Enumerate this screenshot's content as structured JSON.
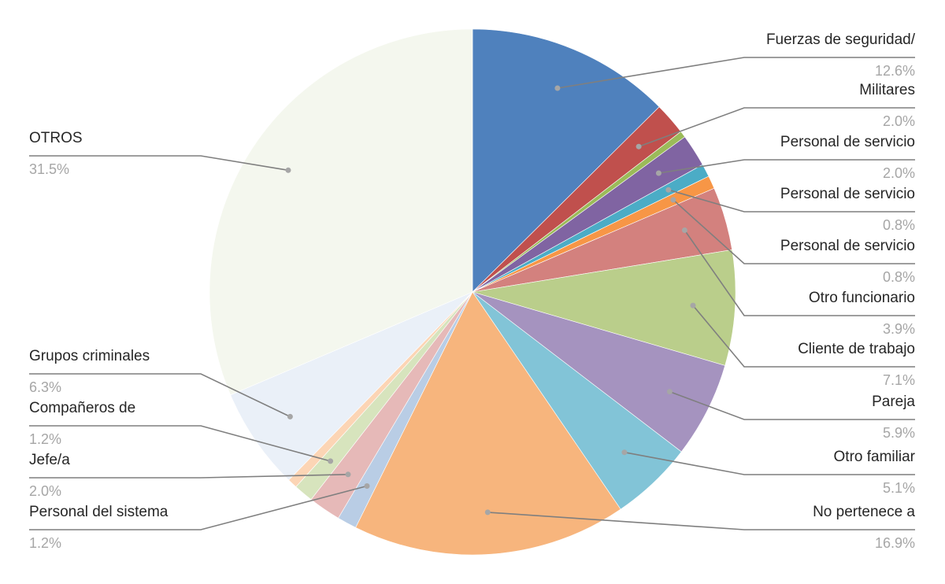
{
  "chart_data": {
    "type": "pie",
    "title": "",
    "start_angle_deg": 0,
    "direction": "clockwise",
    "slices": [
      {
        "label": "Fuerzas de seguridad/",
        "value": 12.6,
        "value_label": "12.6%",
        "color": "#4f81bd",
        "side": "right"
      },
      {
        "label": "Militares",
        "value": 2.0,
        "value_label": "2.0%",
        "color": "#c0504d",
        "side": "right"
      },
      {
        "label": "",
        "value": 0.4,
        "value_label": "",
        "color": "#9bbb59",
        "side": "none"
      },
      {
        "label": "Personal de servicio",
        "value": 2.0,
        "value_label": "2.0%",
        "color": "#8064a2",
        "side": "right"
      },
      {
        "label": "Personal de servicio",
        "value": 0.8,
        "value_label": "0.8%",
        "color": "#4bacc6",
        "side": "right"
      },
      {
        "label": "Personal de servicio",
        "value": 0.8,
        "value_label": "0.8%",
        "color": "#f79646",
        "side": "right"
      },
      {
        "label": "Otro funcionario",
        "value": 3.9,
        "value_label": "3.9%",
        "color": "#d3817e",
        "side": "right"
      },
      {
        "label": "Cliente de trabajo",
        "value": 7.1,
        "value_label": "7.1%",
        "color": "#bace8b",
        "side": "right"
      },
      {
        "label": "Pareja",
        "value": 5.9,
        "value_label": "5.9%",
        "color": "#a593bf",
        "side": "right"
      },
      {
        "label": "Otro familiar",
        "value": 5.1,
        "value_label": "5.1%",
        "color": "#82c4d7",
        "side": "right"
      },
      {
        "label": "No pertenece a",
        "value": 16.9,
        "value_label": "16.9%",
        "color": "#f7b57d",
        "side": "right"
      },
      {
        "label": "Personal del sistema",
        "value": 1.2,
        "value_label": "1.2%",
        "color": "#b9cde5",
        "side": "left"
      },
      {
        "label": "Jefe/a",
        "value": 2.0,
        "value_label": "2.0%",
        "color": "#e6b9b8",
        "side": "left"
      },
      {
        "label": "Compañeros de",
        "value": 1.2,
        "value_label": "1.2%",
        "color": "#d7e4bd",
        "side": "left"
      },
      {
        "label": "",
        "value": 0.6,
        "value_label": "",
        "color": "#fcd5b5",
        "side": "none"
      },
      {
        "label": "Grupos criminales",
        "value": 6.3,
        "value_label": "6.3%",
        "color": "#eaf0f8",
        "side": "left"
      },
      {
        "label": "OTROS",
        "value": 31.5,
        "value_label": "31.5%",
        "color": "#f4f7ee",
        "side": "left"
      }
    ]
  }
}
